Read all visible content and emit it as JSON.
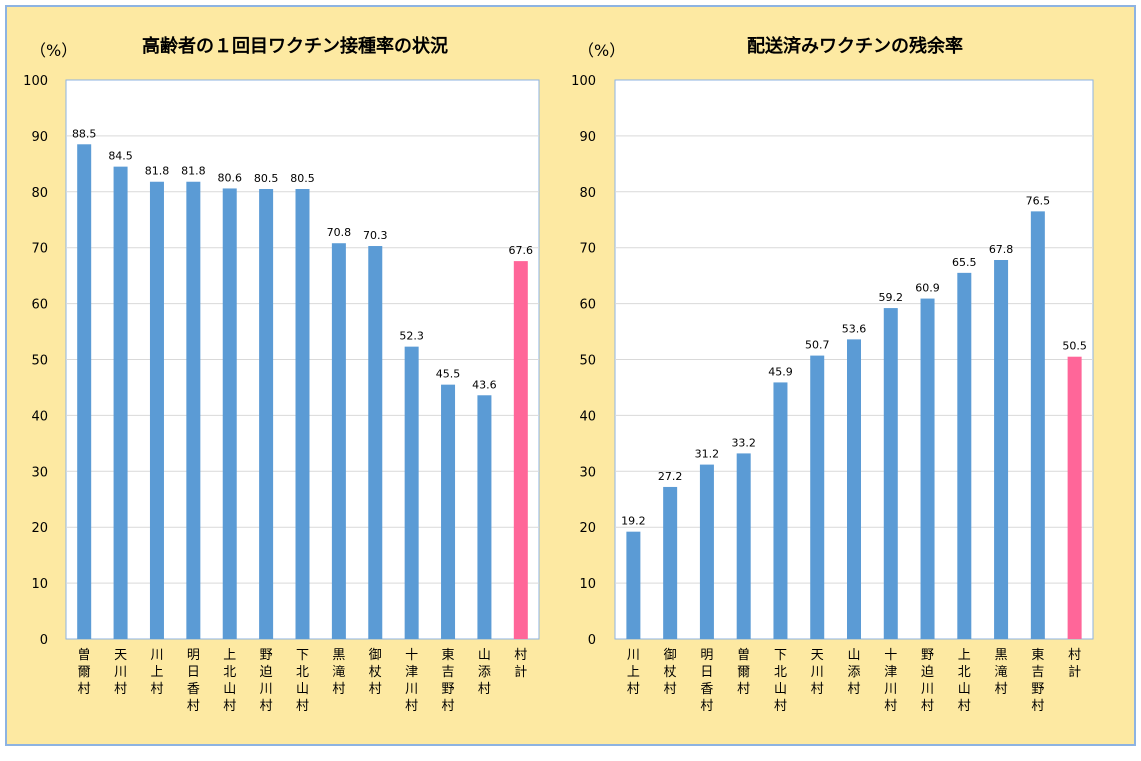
{
  "chart_data": [
    {
      "type": "bar",
      "title": "高齢者の１回目ワクチン接種率の状況",
      "ylabel": "（%）",
      "ylim": [
        0,
        100
      ],
      "yticks": [
        0,
        10,
        20,
        30,
        40,
        50,
        60,
        70,
        80,
        90,
        100
      ],
      "grid": true,
      "categories": [
        "曽爾村",
        "天川村",
        "川上村",
        "明日香村",
        "上北山村",
        "野迫川村",
        "下北山村",
        "黒滝村",
        "御杖村",
        "十津川村",
        "東吉野村",
        "山添村",
        "村計"
      ],
      "values": [
        88.5,
        84.5,
        81.8,
        81.8,
        80.6,
        80.5,
        80.5,
        70.8,
        70.3,
        52.3,
        45.5,
        43.6,
        67.6
      ],
      "value_labels": [
        "88.5",
        "84.5",
        "81.8",
        "81.8",
        "80.6",
        "80.5",
        "80.5",
        "70.8",
        "70.3",
        "52.3",
        "45.5",
        "43.6",
        "67.6"
      ],
      "colors": {
        "bar": "#5b9bd5",
        "total": "#ff6699"
      }
    },
    {
      "type": "bar",
      "title": "配送済みワクチンの残余率",
      "ylabel": "（%）",
      "ylim": [
        0,
        100
      ],
      "yticks": [
        0,
        10,
        20,
        30,
        40,
        50,
        60,
        70,
        80,
        90,
        100
      ],
      "grid": true,
      "categories": [
        "川上村",
        "御杖村",
        "明日香村",
        "曽爾村",
        "下北山村",
        "天川村",
        "山添村",
        "十津川村",
        "野迫川村",
        "上北山村",
        "黒滝村",
        "東吉野村",
        "村計"
      ],
      "values": [
        19.2,
        27.2,
        31.2,
        33.2,
        45.9,
        50.7,
        53.6,
        59.2,
        60.9,
        65.5,
        67.8,
        76.5,
        50.5
      ],
      "value_labels": [
        "19.2",
        "27.2",
        "31.2",
        "33.2",
        "45.9",
        "50.7",
        "53.6",
        "59.2",
        "60.9",
        "65.5",
        "67.8",
        "76.5",
        "50.5"
      ],
      "colors": {
        "bar": "#5b9bd5",
        "total": "#ff6699"
      }
    }
  ]
}
